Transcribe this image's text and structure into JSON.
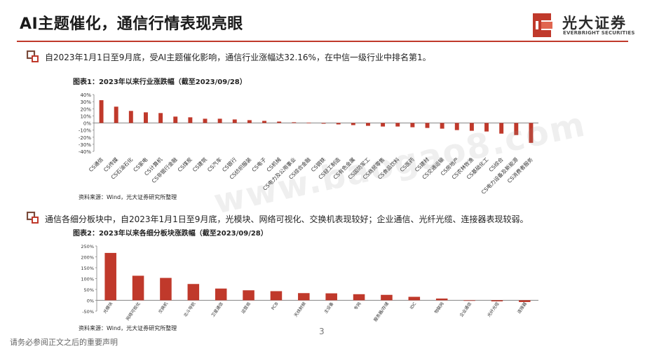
{
  "slide": {
    "title": "AI主题催化，通信行情表现亮眼",
    "page_number": "3",
    "footer": "请务必参阅正文之后的重要声明",
    "watermark": "www.baogao8.com"
  },
  "brand": {
    "name_cn": "光大证券",
    "name_en": "EVERBRIGHT SECURITIES",
    "accent_color": "#c0392b"
  },
  "bullets": [
    {
      "text": "自2023年1月1日至9月底，受AI主题催化影响，通信行业涨幅达32.16%，在中信一级行业中排名第1。"
    },
    {
      "text": "通信各细分板块中，自2023年1月1日至9月底，光模块、网络可视化、交换机表现较好；企业通信、光纤光缆、连接器表现较弱。"
    }
  ],
  "chart_data": [
    {
      "type": "bar",
      "title": "图表1：2023年以来行业涨跌幅（截至2023/09/28）",
      "source": "资料来源：Wind，光大证券研究所整理",
      "categories": [
        "CS通信",
        "CS传媒",
        "CS石油石化",
        "CS家电",
        "CS计算机",
        "CS非银行金融",
        "CS煤炭",
        "CS建筑",
        "CS汽车",
        "CS银行",
        "CS纺织服装",
        "CS电子",
        "CS机械",
        "CS电力及公用事业",
        "CS综合金融",
        "CS钢铁",
        "CS轻工制造",
        "CS有色金属",
        "CS国防军工",
        "CS商贸零售",
        "CS食品饮料",
        "CS医药",
        "CS建材",
        "CS交通运输",
        "CS房地产",
        "CS农林牧渔",
        "CS基础化工",
        "CS综合",
        "CS电力设备及新能源",
        "CS消费者服务"
      ],
      "values": [
        32.16,
        23,
        17,
        15,
        14,
        9,
        8,
        6,
        6,
        5,
        4,
        3,
        2,
        1,
        0.5,
        -1,
        -2,
        -3,
        -4,
        -5,
        -5,
        -6,
        -7,
        -8,
        -10,
        -11,
        -12,
        -15,
        -17,
        -28
      ],
      "ylim": [
        -40,
        40
      ],
      "yticks": [
        -40,
        -30,
        -20,
        -10,
        0,
        10,
        20,
        30,
        40
      ],
      "tick_format": "percent",
      "bar_color": "#c0392b"
    },
    {
      "type": "bar",
      "title": "图表2：2023年以来各细分板块涨跌幅（截至2023/09/28）",
      "source": "资料来源：Wind，光大证券研究所整理",
      "categories": [
        "光模块",
        "网络可视化",
        "交换机",
        "北斗导航",
        "卫星通信",
        "运营商",
        "PCB",
        "天线射频",
        "主设备",
        "专网",
        "服务器/存储",
        "IDC",
        "物联网",
        "企业通信",
        "光纤光缆",
        "连接器"
      ],
      "values": [
        218,
        113,
        103,
        75,
        54,
        46,
        42,
        33,
        32,
        28,
        25,
        16,
        8,
        -2,
        -5,
        -8
      ],
      "ylim": [
        -50,
        250
      ],
      "yticks": [
        -50,
        0,
        50,
        100,
        150,
        200,
        250
      ],
      "tick_format": "percent",
      "bar_color": "#c0392b"
    }
  ]
}
